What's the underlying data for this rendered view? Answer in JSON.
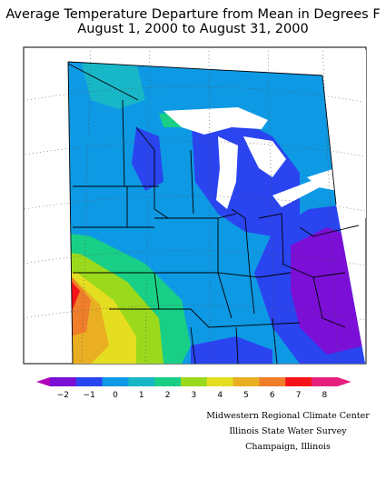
{
  "title": {
    "line1": "Average Temperature Departure from Mean in Degrees F",
    "line2": "August 1, 2000 to August 31, 2000"
  },
  "legend": {
    "ticks": [
      "−2",
      "−1",
      "0",
      "1",
      "2",
      "3",
      "4",
      "5",
      "6",
      "7",
      "8"
    ],
    "colors": [
      "#7b0fd6",
      "#2a44f0",
      "#0e99e4",
      "#18b7c8",
      "#19cf86",
      "#9bd91c",
      "#e4dd20",
      "#e9ae22",
      "#ef7d2a",
      "#f41318",
      "#e6207f"
    ],
    "min_color": "#b000b8",
    "max_color": "#e62080"
  },
  "credits": {
    "line1": "Midwestern Regional Climate Center",
    "line2": "Illinois State Water Survey",
    "line3": "Champaign, Illinois"
  }
}
